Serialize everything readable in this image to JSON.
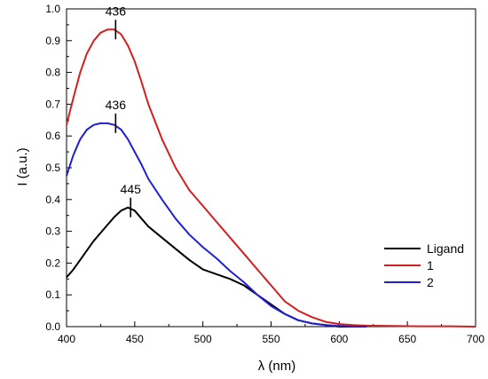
{
  "chart_data": {
    "type": "line",
    "xlabel": "λ (nm)",
    "ylabel": "I (a.u.)",
    "xlim": [
      400,
      700
    ],
    "ylim": [
      0.0,
      1.0
    ],
    "xticks": [
      "400",
      "450",
      "500",
      "550",
      "600",
      "650",
      "700"
    ],
    "yticks": [
      "0.0",
      "0.1",
      "0.2",
      "0.3",
      "0.4",
      "0.5",
      "0.6",
      "0.7",
      "0.8",
      "0.9",
      "1.0"
    ],
    "grid": false,
    "legend_position": "right",
    "series": [
      {
        "name": "Ligand",
        "color": "#000000",
        "x": [
          400,
          405,
          410,
          415,
          420,
          425,
          430,
          435,
          440,
          445,
          450,
          455,
          460,
          470,
          480,
          490,
          500,
          510,
          520,
          530,
          540,
          550,
          560,
          570,
          580,
          590,
          600,
          610,
          620
        ],
        "y": [
          0.155,
          0.18,
          0.21,
          0.24,
          0.27,
          0.295,
          0.32,
          0.345,
          0.365,
          0.375,
          0.365,
          0.34,
          0.315,
          0.28,
          0.245,
          0.21,
          0.18,
          0.165,
          0.15,
          0.13,
          0.1,
          0.07,
          0.04,
          0.02,
          0.01,
          0.005,
          0.0,
          0.0,
          0.0
        ]
      },
      {
        "name": "1",
        "color": "#d21f1f",
        "x": [
          400,
          405,
          410,
          415,
          420,
          425,
          430,
          435,
          440,
          445,
          450,
          455,
          460,
          470,
          480,
          490,
          500,
          510,
          520,
          530,
          540,
          550,
          560,
          570,
          580,
          590,
          600,
          610,
          620,
          640,
          660,
          680,
          700
        ],
        "y": [
          0.635,
          0.72,
          0.8,
          0.86,
          0.9,
          0.925,
          0.935,
          0.935,
          0.92,
          0.885,
          0.835,
          0.77,
          0.7,
          0.59,
          0.5,
          0.43,
          0.38,
          0.33,
          0.28,
          0.23,
          0.18,
          0.13,
          0.08,
          0.05,
          0.03,
          0.015,
          0.008,
          0.005,
          0.003,
          0.002,
          0.001,
          0.001,
          0.0
        ]
      },
      {
        "name": "2",
        "color": "#2020d0",
        "x": [
          400,
          405,
          410,
          415,
          420,
          425,
          430,
          435,
          440,
          445,
          450,
          455,
          460,
          470,
          480,
          490,
          500,
          510,
          520,
          530,
          540,
          550,
          560,
          570,
          580,
          590,
          600,
          610,
          620
        ],
        "y": [
          0.475,
          0.54,
          0.59,
          0.62,
          0.635,
          0.64,
          0.64,
          0.635,
          0.62,
          0.59,
          0.55,
          0.51,
          0.465,
          0.4,
          0.34,
          0.29,
          0.25,
          0.215,
          0.175,
          0.14,
          0.1,
          0.065,
          0.04,
          0.02,
          0.01,
          0.005,
          0.002,
          0.0,
          0.0
        ]
      }
    ],
    "annotations": [
      {
        "text": "436",
        "x": 436,
        "y": 0.935
      },
      {
        "text": "436",
        "x": 436,
        "y": 0.64
      },
      {
        "text": "445",
        "x": 447,
        "y": 0.375
      }
    ]
  }
}
